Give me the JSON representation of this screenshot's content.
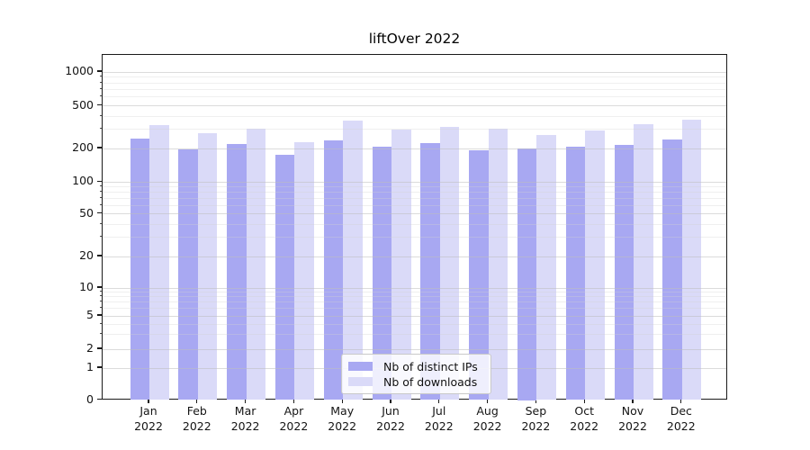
{
  "figure": {
    "background": "#ffffff"
  },
  "chart_data": {
    "type": "bar",
    "title": "liftOver 2022",
    "categories": [
      "Jan",
      "Feb",
      "Mar",
      "Apr",
      "May",
      "Jun",
      "Jul",
      "Aug",
      "Sep",
      "Oct",
      "Nov",
      "Dec"
    ],
    "category_year": "2022",
    "series": [
      {
        "name": "Nb of distinct IPs",
        "color": "#a8a8f2",
        "values": [
          247,
          196,
          221,
          176,
          240,
          207,
          223,
          193,
          200,
          209,
          215,
          243
        ]
      },
      {
        "name": "Nb of downloads",
        "color": "#dadaf8",
        "values": [
          331,
          276,
          305,
          230,
          362,
          299,
          318,
          308,
          266,
          295,
          337,
          373
        ]
      }
    ],
    "yscale": "symlog",
    "y_major_ticks": [
      0,
      1,
      2,
      5,
      10,
      20,
      50,
      100,
      200,
      500,
      1000
    ],
    "y_minor_ticks": [
      3,
      4,
      6,
      7,
      8,
      9,
      30,
      40,
      60,
      70,
      80,
      90,
      300,
      400,
      600,
      700,
      800,
      900
    ],
    "ylim": [
      0,
      1400
    ],
    "xlabel": "",
    "ylabel": "",
    "grid": true,
    "legend_position": "lower center"
  },
  "legend": {
    "items": [
      {
        "label": "Nb of distinct IPs",
        "color": "#a8a8f2"
      },
      {
        "label": "Nb of downloads",
        "color": "#dadaf8"
      }
    ]
  },
  "colors": {
    "grid_major": "#d9d9d9",
    "grid_minor": "#ececec",
    "spine": "#1a1a1a",
    "text": "#151515"
  }
}
